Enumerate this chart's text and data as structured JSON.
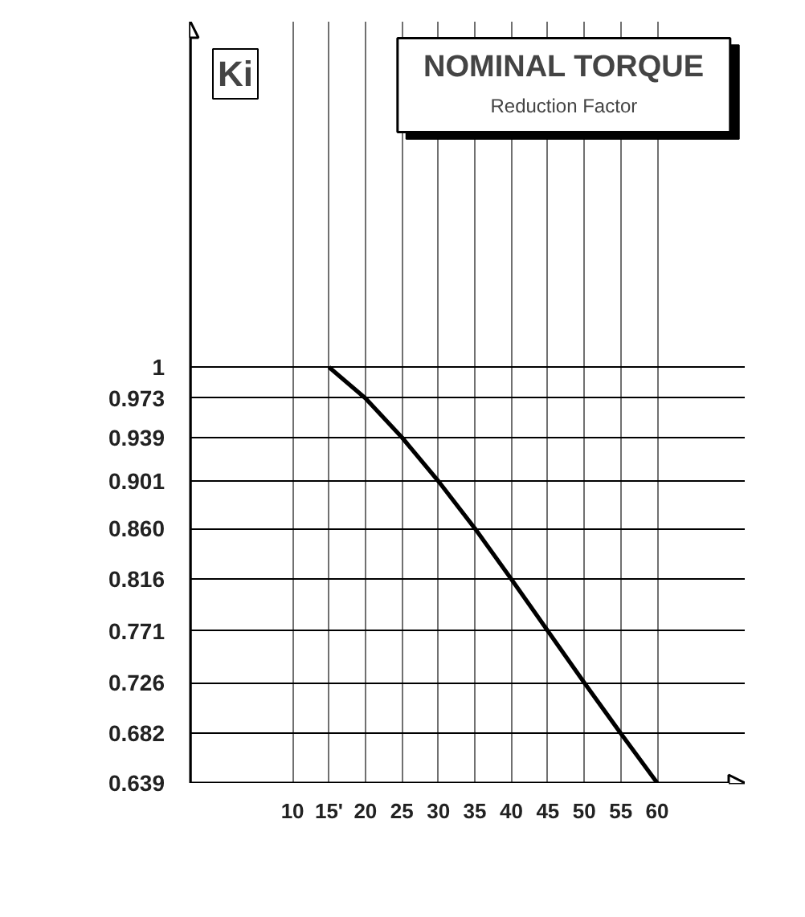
{
  "chart_data": {
    "type": "line",
    "title": "NOMINAL TORQUE",
    "subtitle": "Reduction Factor",
    "ylabel": "Ki",
    "x": [
      15,
      20,
      25,
      30,
      35,
      40,
      45,
      50,
      55,
      60
    ],
    "series": [
      {
        "color": "#000000",
        "values": [
          1,
          0.973,
          0.939,
          0.901,
          0.86,
          0.816,
          0.771,
          0.726,
          0.682,
          0.639
        ]
      }
    ],
    "xlim": [
      -4,
      72
    ],
    "ylim": [
      0.639,
      1.3
    ],
    "xticks": [
      10,
      {
        "value": 15,
        "label": "15'"
      },
      20,
      25,
      30,
      35,
      40,
      45,
      50,
      55,
      60
    ],
    "yticks": [
      {
        "value": 0.639,
        "label": "0.639"
      },
      {
        "value": 0.682,
        "label": "0.682"
      },
      {
        "value": 0.726,
        "label": "0.726"
      },
      {
        "value": 0.771,
        "label": "0.771"
      },
      {
        "value": 0.816,
        "label": "0.816"
      },
      {
        "value": 0.86,
        "label": "0.860"
      },
      {
        "value": 0.901,
        "label": "0.901"
      },
      {
        "value": 0.939,
        "label": "0.939"
      },
      {
        "value": 0.973,
        "label": "0.973"
      },
      {
        "value": 1,
        "label": "1"
      }
    ],
    "grid": true,
    "marker": "none",
    "line_style": "solid"
  }
}
